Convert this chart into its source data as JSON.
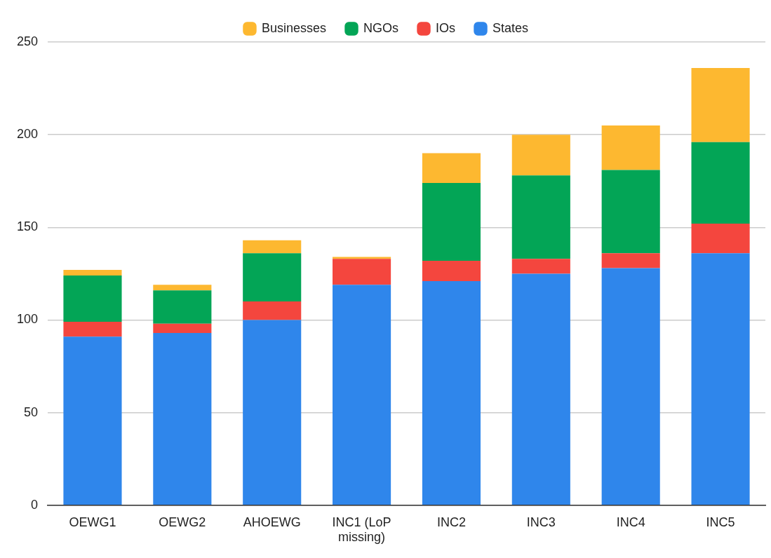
{
  "chart_data": {
    "type": "bar",
    "stacked": true,
    "categories": [
      "OEWG1",
      "OEWG2",
      "AHOEWG",
      "INC1 (LoP missing)",
      "INC2",
      "INC3",
      "INC4",
      "INC5"
    ],
    "series": [
      {
        "name": "States",
        "color": "#2f86eb",
        "values": [
          91,
          93,
          100,
          119,
          121,
          125,
          128,
          136
        ]
      },
      {
        "name": "IOs",
        "color": "#f4463e",
        "values": [
          8,
          5,
          10,
          14,
          11,
          8,
          8,
          16
        ]
      },
      {
        "name": "NGOs",
        "color": "#03a556",
        "values": [
          25,
          18,
          26,
          0,
          42,
          45,
          45,
          44
        ]
      },
      {
        "name": "Businesses",
        "color": "#fdb830",
        "values": [
          3,
          3,
          7,
          1,
          16,
          22,
          24,
          40
        ]
      }
    ],
    "ylim": [
      0,
      250
    ],
    "yticks": [
      0,
      50,
      100,
      150,
      200,
      250
    ],
    "grid": "y",
    "legend": "top"
  }
}
